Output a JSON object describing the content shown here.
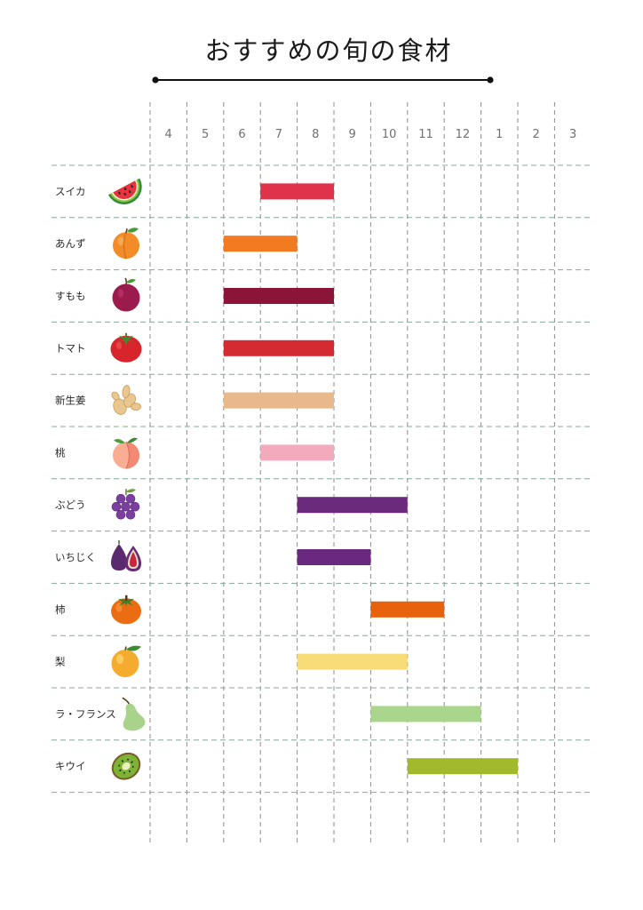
{
  "chart_data": {
    "type": "bar",
    "orientation": "horizontal",
    "title": "おすすめの旬の食材",
    "xlabel": "",
    "ylabel": "",
    "months": [
      "4",
      "5",
      "6",
      "7",
      "8",
      "9",
      "10",
      "11",
      "12",
      "1",
      "2",
      "3"
    ],
    "grid": true,
    "legend": "none",
    "items": [
      {
        "name": "スイカ",
        "start": 7,
        "end": 8,
        "color": "#e0324b",
        "icon": "watermelon-icon"
      },
      {
        "name": "あんず",
        "start": 6,
        "end": 7,
        "color": "#f27b21",
        "icon": "apricot-icon"
      },
      {
        "name": "すもも",
        "start": 6,
        "end": 8,
        "color": "#8a1538",
        "icon": "plum-icon"
      },
      {
        "name": "トマト",
        "start": 6,
        "end": 8,
        "color": "#d42b33",
        "icon": "tomato-icon"
      },
      {
        "name": "新生姜",
        "start": 6,
        "end": 8,
        "color": "#e8b98a",
        "icon": "ginger-icon"
      },
      {
        "name": "桃",
        "start": 7,
        "end": 8,
        "color": "#f4aabd",
        "icon": "peach-icon"
      },
      {
        "name": "ぶどう",
        "start": 8,
        "end": 10,
        "color": "#6b2a7b",
        "icon": "grapes-icon"
      },
      {
        "name": "いちじく",
        "start": 8,
        "end": 9,
        "color": "#69297f",
        "icon": "fig-icon"
      },
      {
        "name": "柿",
        "start": 10,
        "end": 11,
        "color": "#e8620e",
        "icon": "persimmon-icon"
      },
      {
        "name": "梨",
        "start": 8,
        "end": 10,
        "color": "#f8dc78",
        "icon": "nashi-pear-icon"
      },
      {
        "name": "ラ・フランス",
        "start": 10,
        "end": 12,
        "color": "#a9d68c",
        "icon": "la-france-pear-icon"
      },
      {
        "name": "キウイ",
        "start": 11,
        "end": 1,
        "color": "#a2b92b",
        "icon": "kiwi-icon"
      }
    ]
  }
}
